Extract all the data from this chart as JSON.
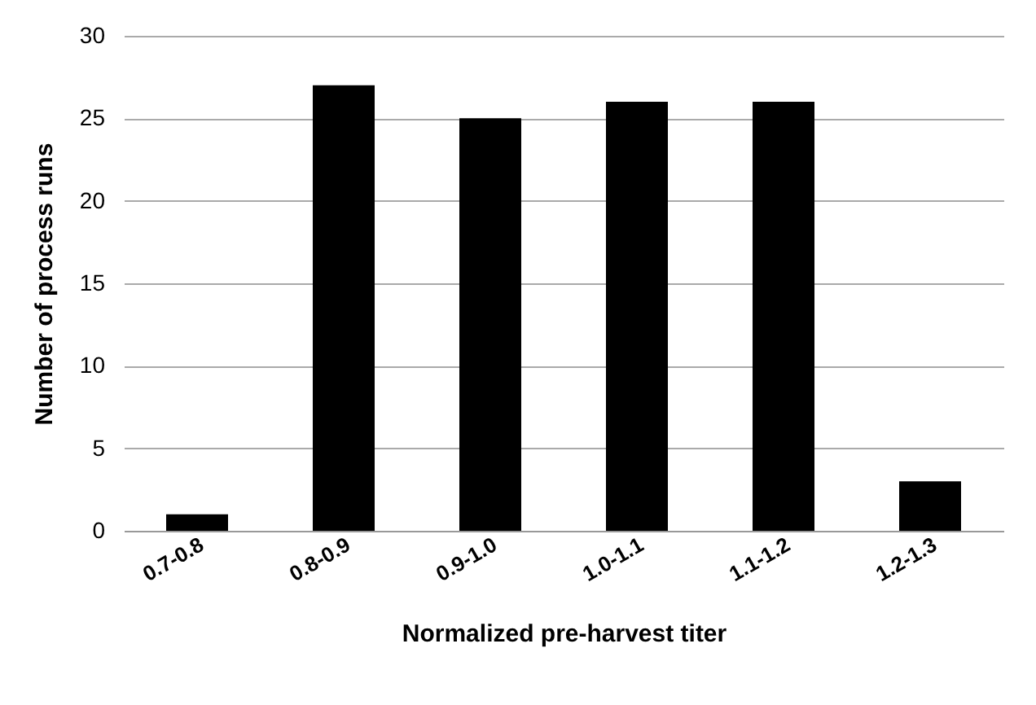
{
  "chart_data": {
    "type": "bar",
    "xlabel": "Normalized pre-harvest titer",
    "ylabel": "Number of process runs",
    "categories": [
      "0.7-0.8",
      "0.8-0.9",
      "0.9-1.0",
      "1.0-1.1",
      "1.1-1.2",
      "1.2-1.3"
    ],
    "values": [
      1,
      27,
      25,
      26,
      26,
      3
    ],
    "color": "#000000",
    "ylim": [
      0,
      30
    ],
    "yticks": [
      0,
      5,
      10,
      15,
      20,
      25,
      30
    ],
    "grid": "y"
  }
}
